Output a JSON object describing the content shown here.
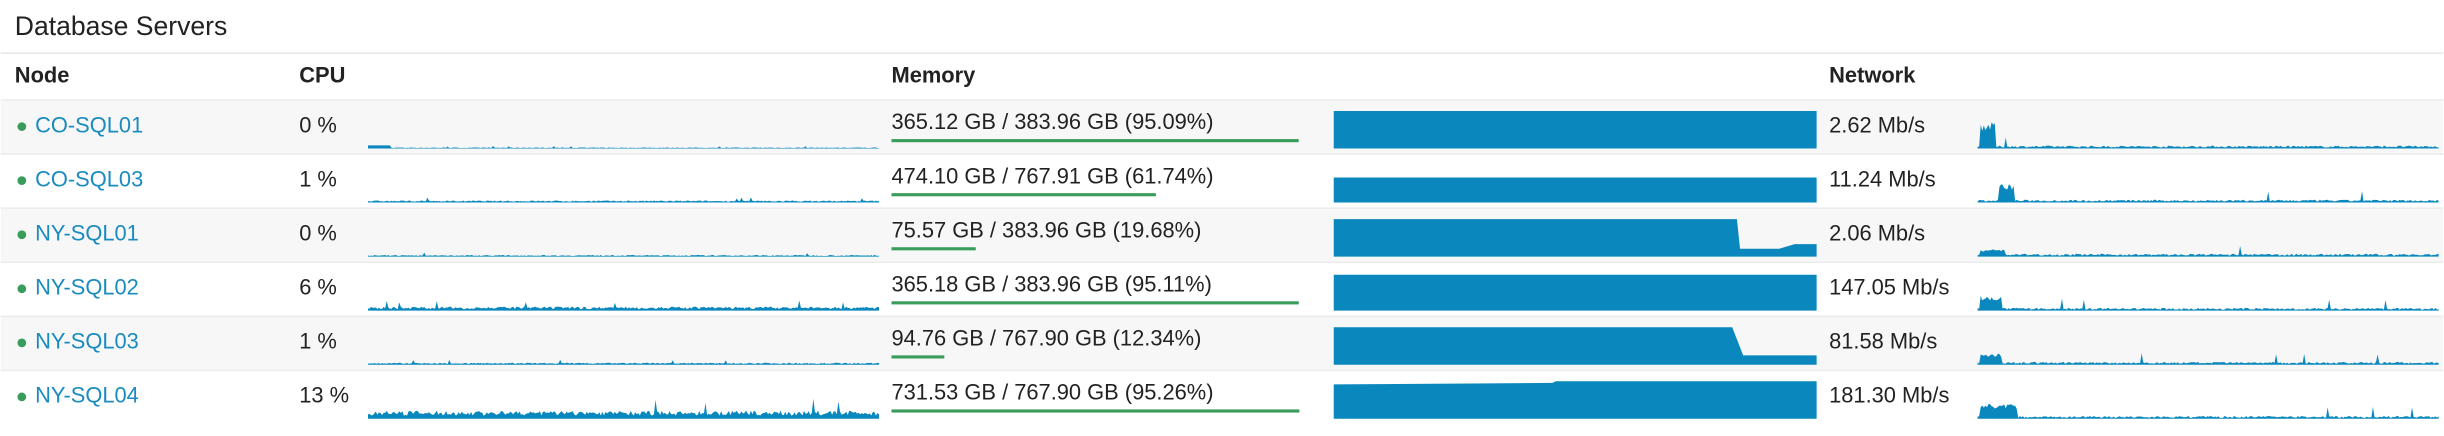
{
  "title": "Database Servers",
  "header": {
    "node": "Node",
    "cpu": "CPU",
    "memory": "Memory",
    "network": "Network"
  },
  "rows": [
    {
      "node": "CO-SQL01",
      "cpu": "0 %",
      "memory": "365.12 GB / 383.96 GB (95.09%)",
      "memory_pct": 95.09,
      "network": "2.62 Mb/s"
    },
    {
      "node": "CO-SQL03",
      "cpu": "1 %",
      "memory": "474.10 GB / 767.91 GB (61.74%)",
      "memory_pct": 61.74,
      "network": "11.24 Mb/s"
    },
    {
      "node": "NY-SQL01",
      "cpu": "0 %",
      "memory": "75.57 GB / 383.96 GB (19.68%)",
      "memory_pct": 19.68,
      "network": "2.06 Mb/s"
    },
    {
      "node": "NY-SQL02",
      "cpu": "6 %",
      "memory": "365.18 GB / 383.96 GB (95.11%)",
      "memory_pct": 95.11,
      "network": "147.05 Mb/s"
    },
    {
      "node": "NY-SQL03",
      "cpu": "1 %",
      "memory": "94.76 GB / 767.90 GB (12.34%)",
      "memory_pct": 12.34,
      "network": "81.58 Mb/s"
    },
    {
      "node": "NY-SQL04",
      "cpu": "13 %",
      "memory": "731.53 GB / 767.90 GB (95.26%)",
      "memory_pct": 95.26,
      "network": "181.30 Mb/s"
    }
  ]
}
